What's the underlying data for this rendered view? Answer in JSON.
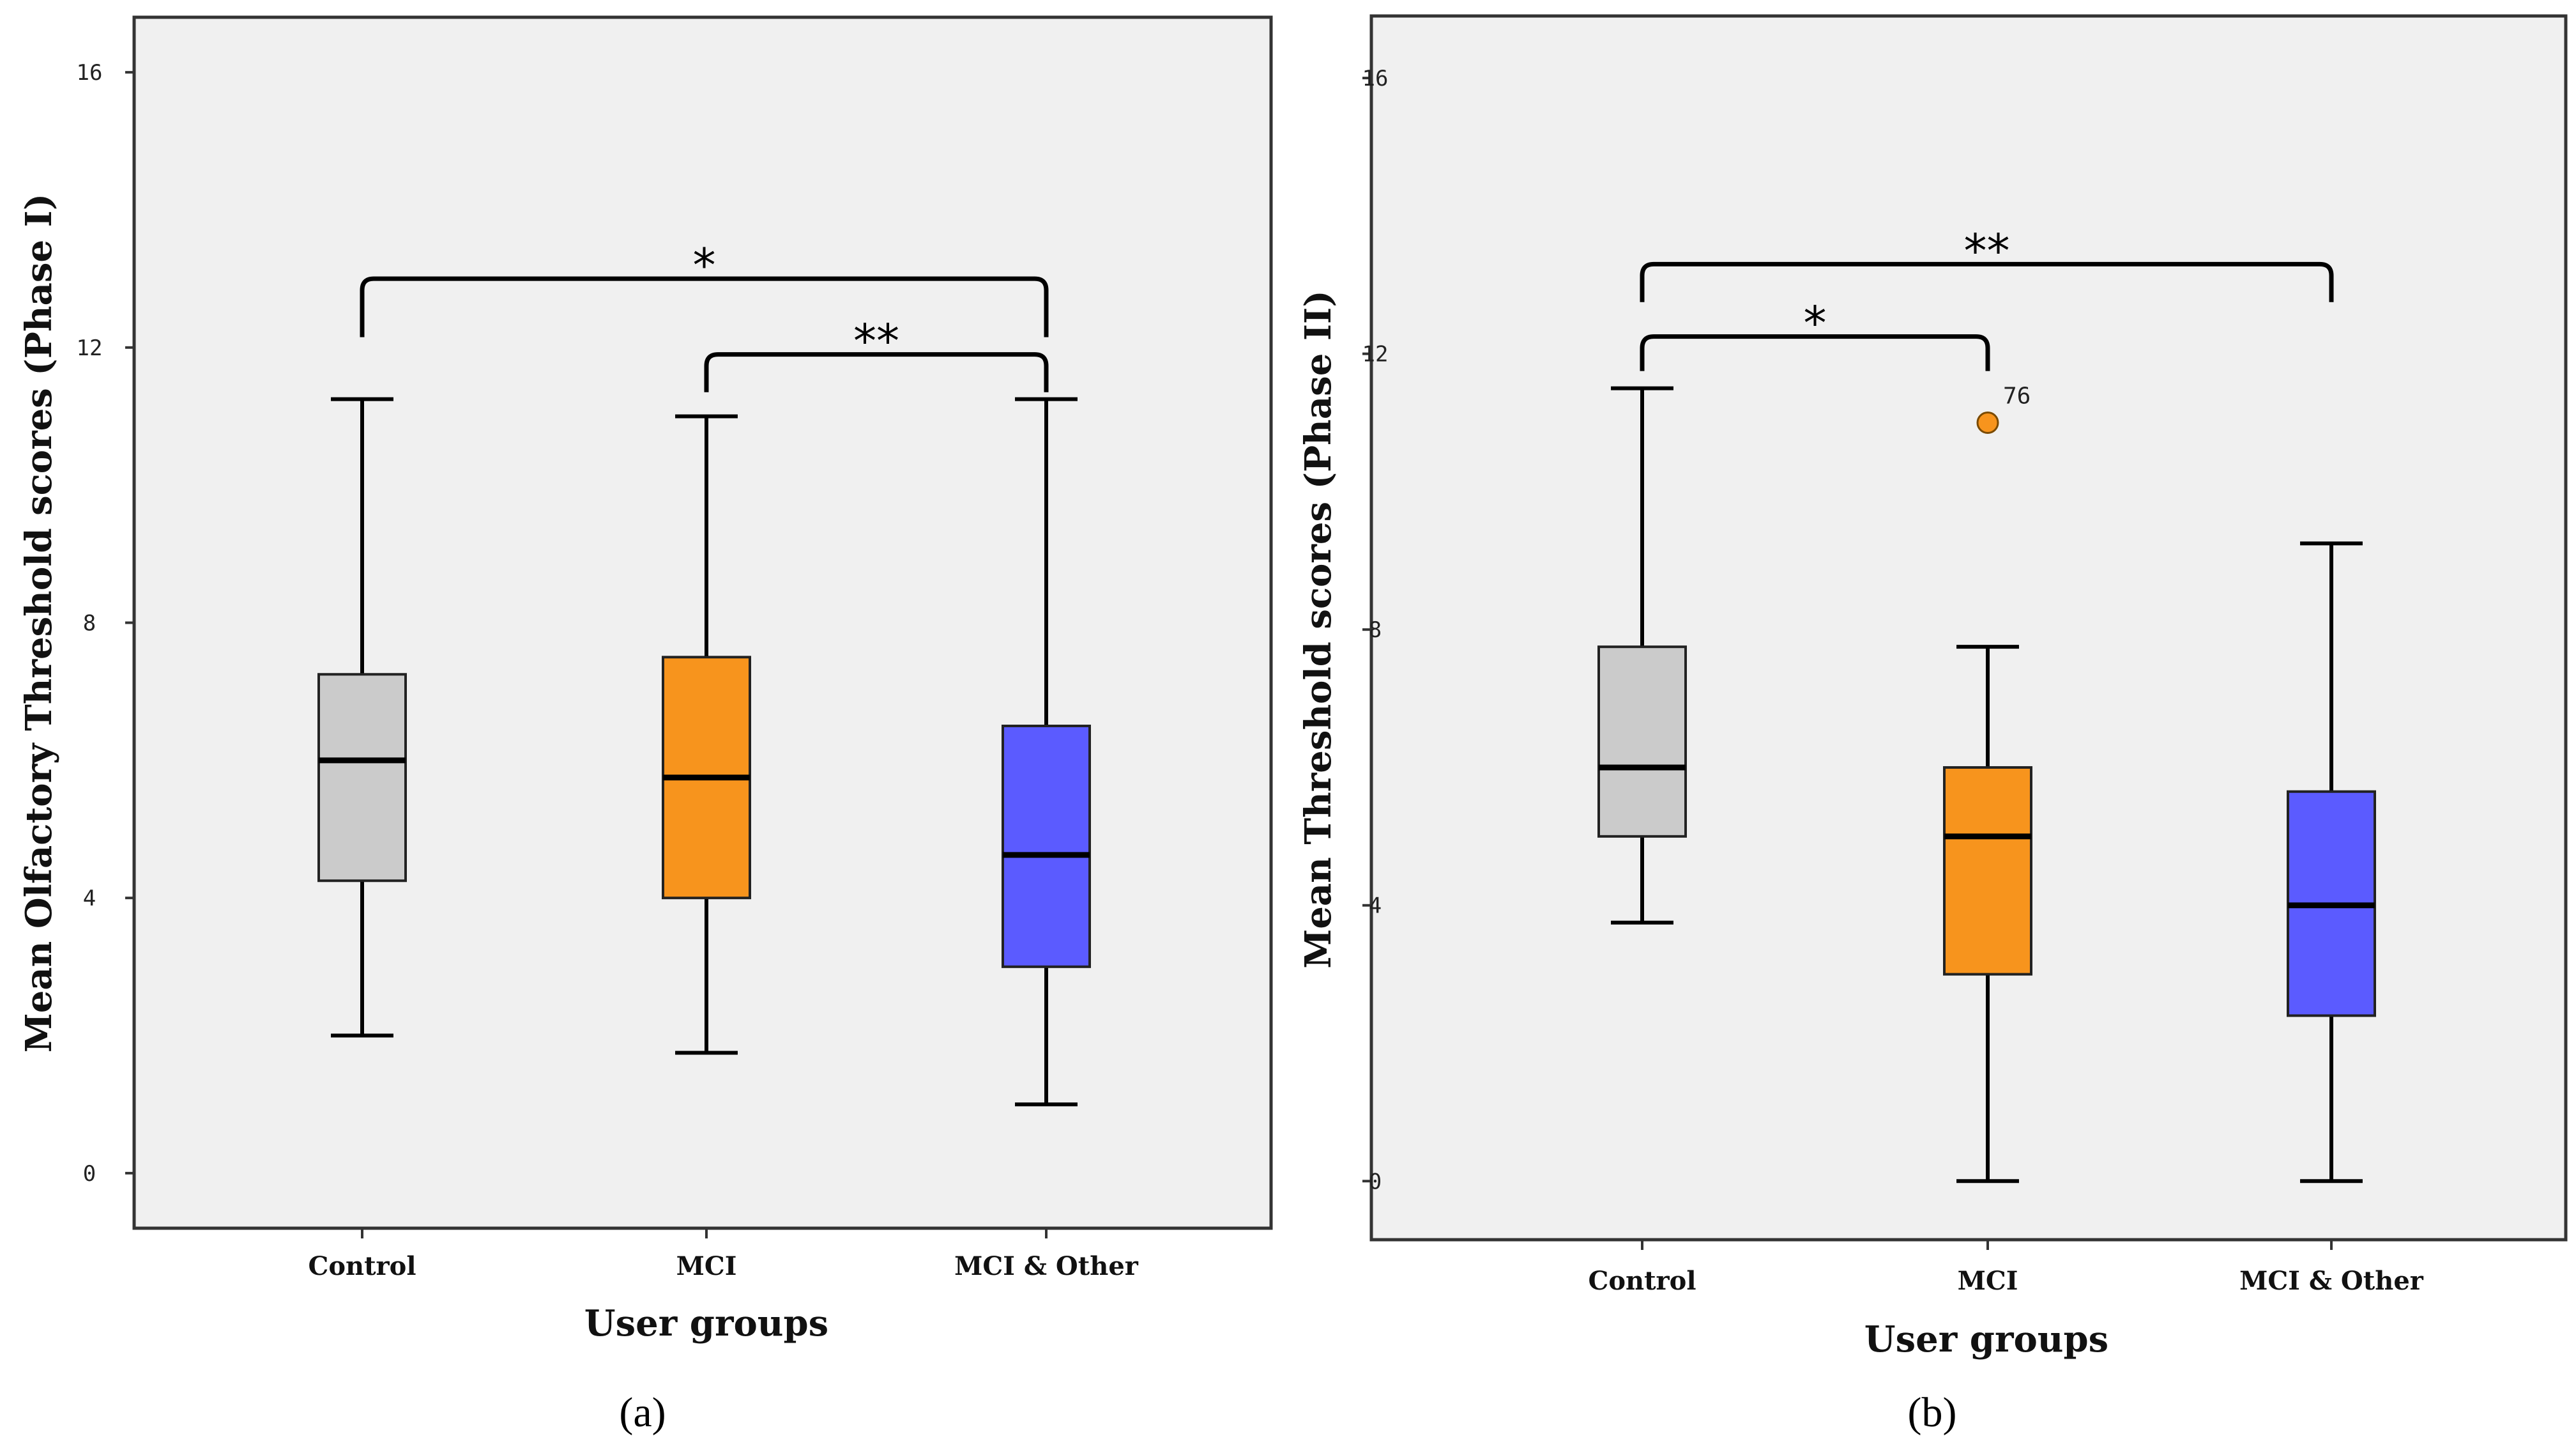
{
  "chart_data": [
    {
      "type": "boxplot",
      "panel_label": "(a)",
      "xlabel": "User groups",
      "ylabel": "Mean Olfactory Threshold scores (Phase I)",
      "ylim": [
        -0.8,
        16.8
      ],
      "yticks": [
        "0",
        "4",
        "8",
        "12",
        "16"
      ],
      "categories": [
        "Control",
        "MCI",
        "MCI & Other"
      ],
      "boxes": [
        {
          "category": "Control",
          "color": "#cbcbcb",
          "whisker_low": 2.0,
          "q1": 4.25,
          "median": 6.0,
          "q3": 7.25,
          "whisker_high": 11.25
        },
        {
          "category": "MCI",
          "color": "#f7941d",
          "whisker_low": 1.75,
          "q1": 4.0,
          "median": 5.75,
          "q3": 7.5,
          "whisker_high": 11.0
        },
        {
          "category": "MCI & Other",
          "color": "#5b5bff",
          "whisker_low": 1.0,
          "q1": 3.0,
          "median": 4.625,
          "q3": 6.5,
          "whisker_high": 11.25
        }
      ],
      "outliers": [],
      "significance": [
        {
          "from": 0,
          "to": 2,
          "level": 13.0,
          "drop_left": 12.15,
          "drop_right": 12.15,
          "label": "*"
        },
        {
          "from": 1,
          "to": 2,
          "level": 11.9,
          "drop_left": 11.35,
          "drop_right": 11.35,
          "label": "**"
        }
      ]
    },
    {
      "type": "boxplot",
      "panel_label": "(b)",
      "xlabel": "User groups",
      "ylabel": "Mean Threshold scores (Phase II)",
      "ylim": [
        -0.85,
        16.9
      ],
      "yticks": [
        "0",
        "4",
        "8",
        "12",
        "16"
      ],
      "categories": [
        "Control",
        "MCI",
        "MCI & Other"
      ],
      "boxes": [
        {
          "category": "Control",
          "color": "#cbcbcb",
          "whisker_low": 3.75,
          "q1": 5.0,
          "median": 6.0,
          "q3": 7.75,
          "whisker_high": 11.5
        },
        {
          "category": "MCI",
          "color": "#f7941d",
          "whisker_low": 0.0,
          "q1": 3.0,
          "median": 5.0,
          "q3": 6.0,
          "whisker_high": 7.75
        },
        {
          "category": "MCI & Other",
          "color": "#5b5bff",
          "whisker_low": 0.0,
          "q1": 2.4,
          "median": 4.0,
          "q3": 5.65,
          "whisker_high": 9.25
        }
      ],
      "outliers": [
        {
          "category_index": 1,
          "value": 11.0,
          "label": "76",
          "color": "#f7941d"
        }
      ],
      "significance": [
        {
          "from": 0,
          "to": 2,
          "level": 13.3,
          "drop_left": 12.75,
          "drop_right": 12.75,
          "label": "**"
        },
        {
          "from": 0,
          "to": 1,
          "level": 12.25,
          "drop_left": 11.75,
          "drop_right": 11.75,
          "label": "*"
        }
      ]
    }
  ]
}
